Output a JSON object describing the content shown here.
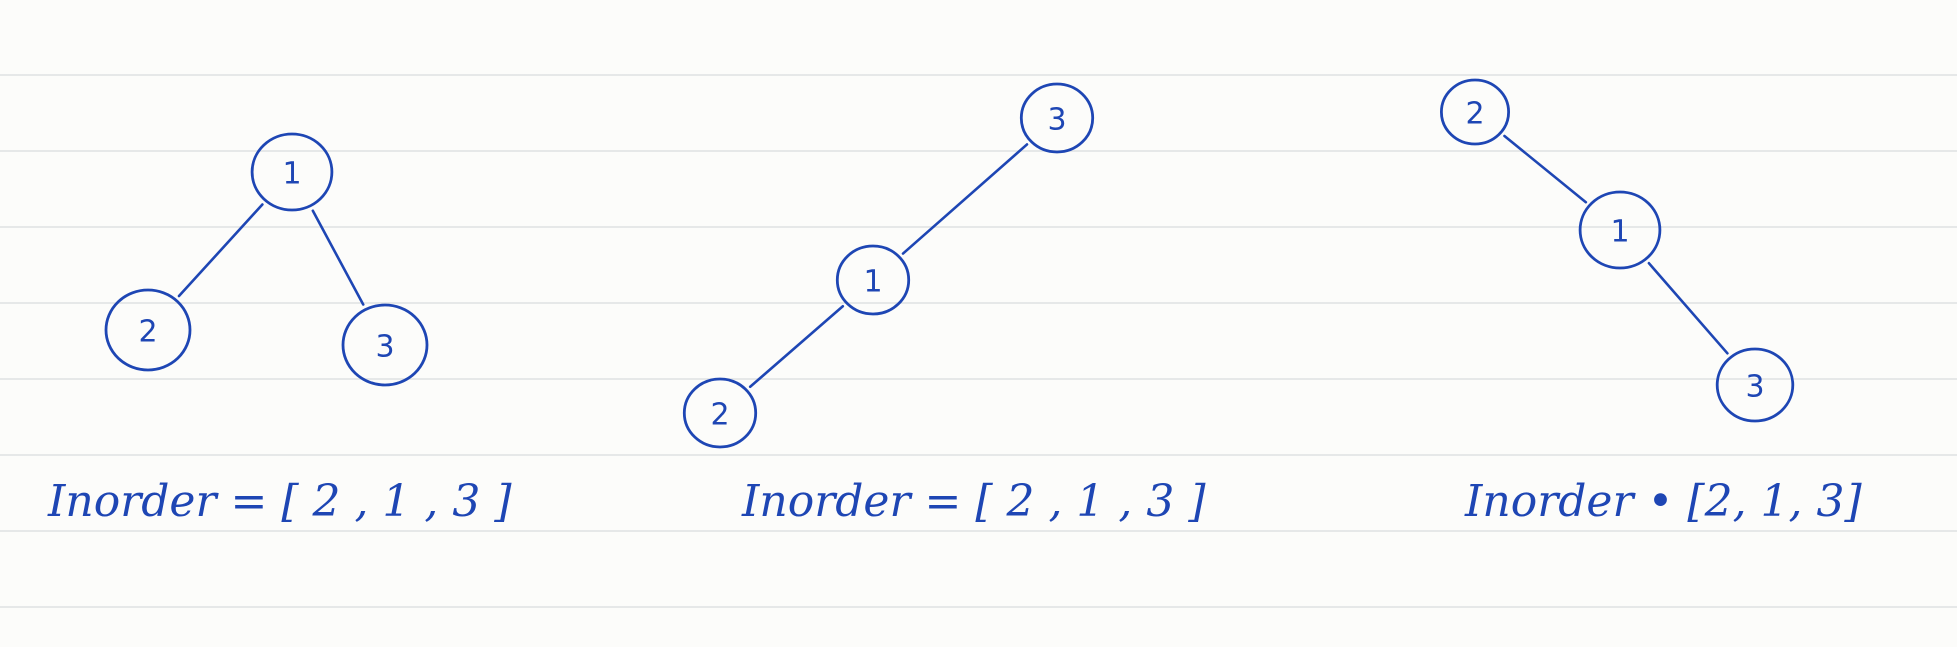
{
  "ink_color": "#1e46b4",
  "trees": [
    {
      "nodes": [
        {
          "id": "a",
          "label": "1"
        },
        {
          "id": "b",
          "label": "2"
        },
        {
          "id": "c",
          "label": "3"
        }
      ],
      "edges": [
        [
          "a",
          "b"
        ],
        [
          "a",
          "c"
        ]
      ],
      "caption": "Inorder = [ 2 , 1 , 3 ]"
    },
    {
      "nodes": [
        {
          "id": "a",
          "label": "3"
        },
        {
          "id": "b",
          "label": "1"
        },
        {
          "id": "c",
          "label": "2"
        }
      ],
      "edges": [
        [
          "a",
          "b"
        ],
        [
          "b",
          "c"
        ]
      ],
      "caption": "Inorder = [ 2 , 1 , 3 ]"
    },
    {
      "nodes": [
        {
          "id": "a",
          "label": "2"
        },
        {
          "id": "b",
          "label": "1"
        },
        {
          "id": "c",
          "label": "3"
        }
      ],
      "edges": [
        [
          "a",
          "b"
        ],
        [
          "b",
          "c"
        ]
      ],
      "caption": "Inorder • [2, 1, 3]"
    }
  ]
}
